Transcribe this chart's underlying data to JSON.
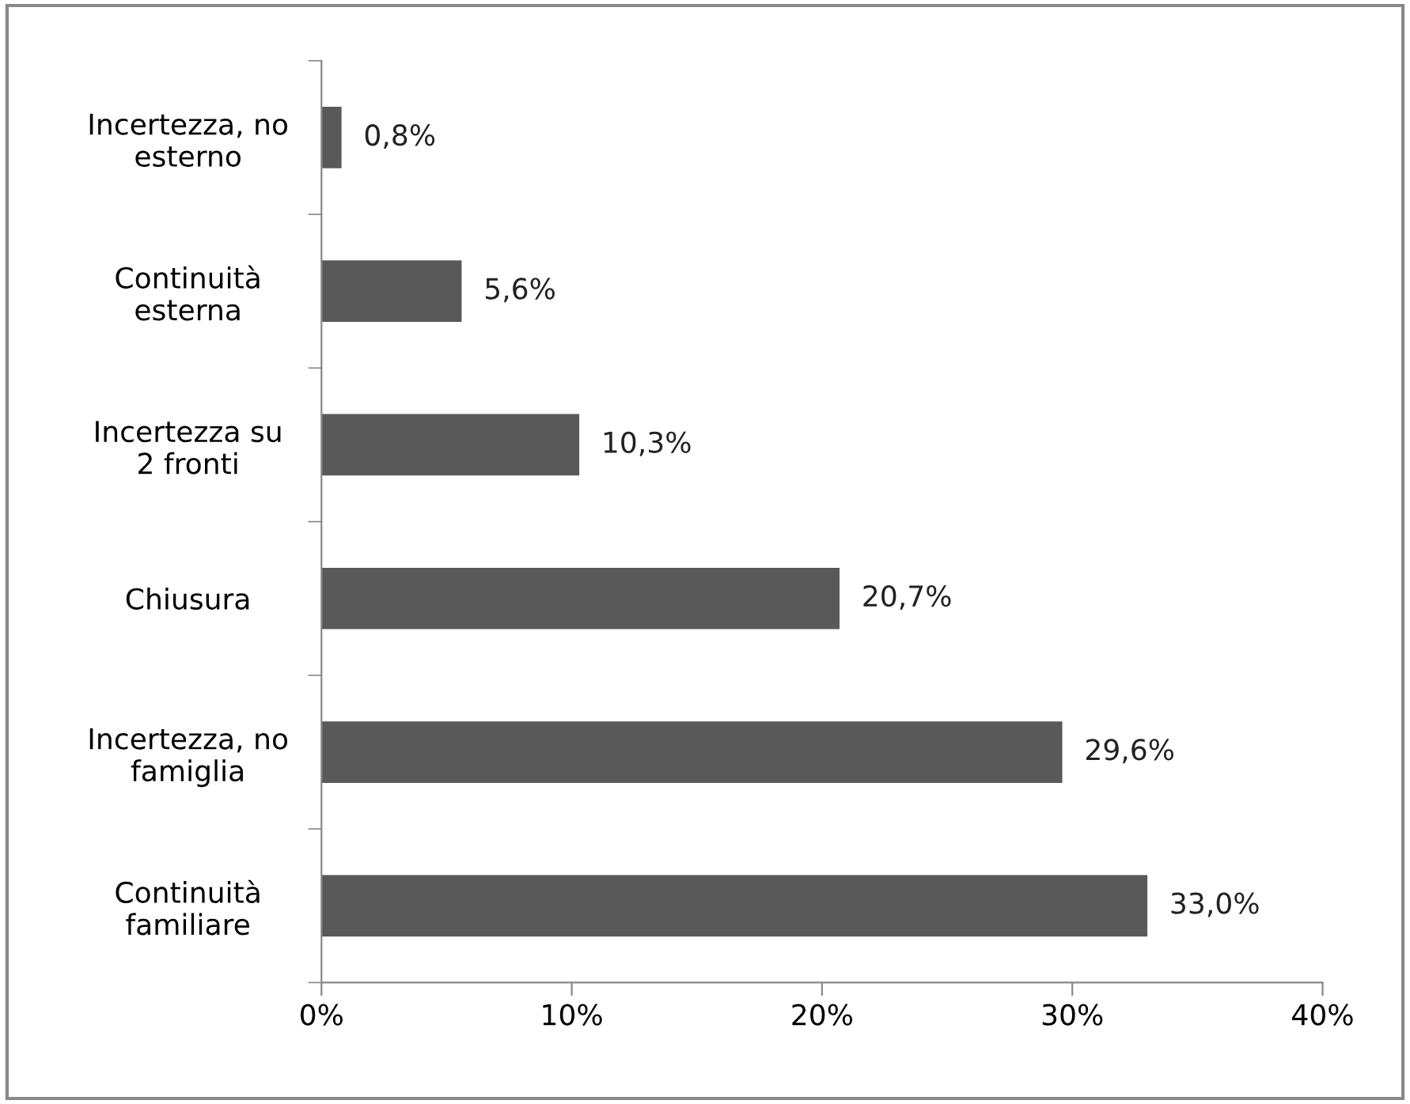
{
  "chart_data": {
    "type": "bar",
    "orientation": "horizontal",
    "categories": [
      "Incertezza, no\nesterno",
      "Continuità\nesterna",
      "Incertezza su\n2 fronti",
      "Chiusura",
      "Incertezza, no\nfamiglia",
      "Continuità\nfamiliare"
    ],
    "values": [
      0.8,
      5.6,
      10.3,
      20.7,
      29.6,
      33.0
    ],
    "value_labels": [
      "0,8%",
      "5,6%",
      "10,3%",
      "20,7%",
      "29,6%",
      "33,0%"
    ],
    "color": "#595959",
    "xlim": [
      0,
      40
    ],
    "xticks": [
      {
        "value": 0,
        "label": "0%"
      },
      {
        "value": 10,
        "label": "10%"
      },
      {
        "value": 20,
        "label": "20%"
      },
      {
        "value": 30,
        "label": "30%"
      },
      {
        "value": 40,
        "label": "40%"
      }
    ],
    "grid": false,
    "legend": false
  }
}
